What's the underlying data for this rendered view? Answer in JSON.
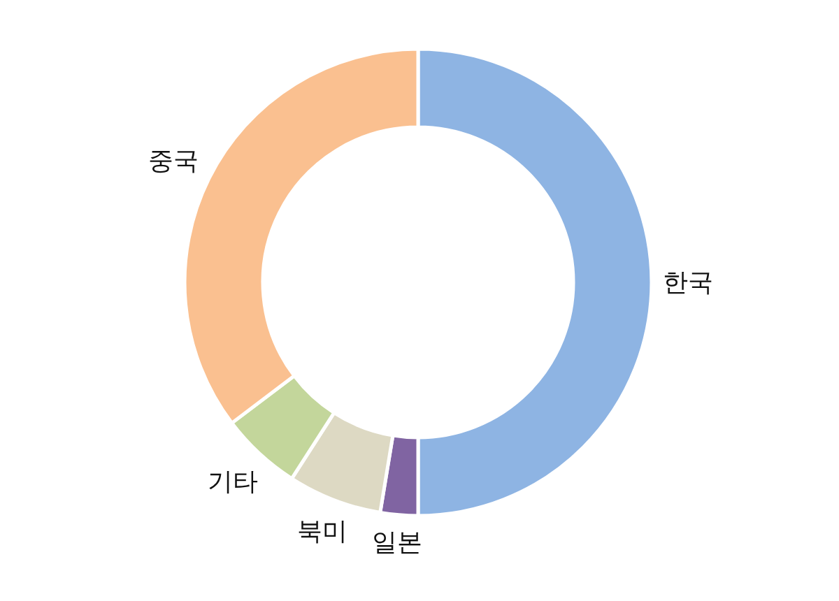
{
  "chart_data": {
    "type": "donut",
    "categories": [
      "한국",
      "일본",
      "북미",
      "기타",
      "중국"
    ],
    "values": [
      50,
      2.6,
      6.5,
      5.6,
      35.3
    ],
    "colors": [
      "#8eb4e3",
      "#8064a2",
      "#ddd9c3",
      "#c3d69b",
      "#fac090"
    ]
  }
}
